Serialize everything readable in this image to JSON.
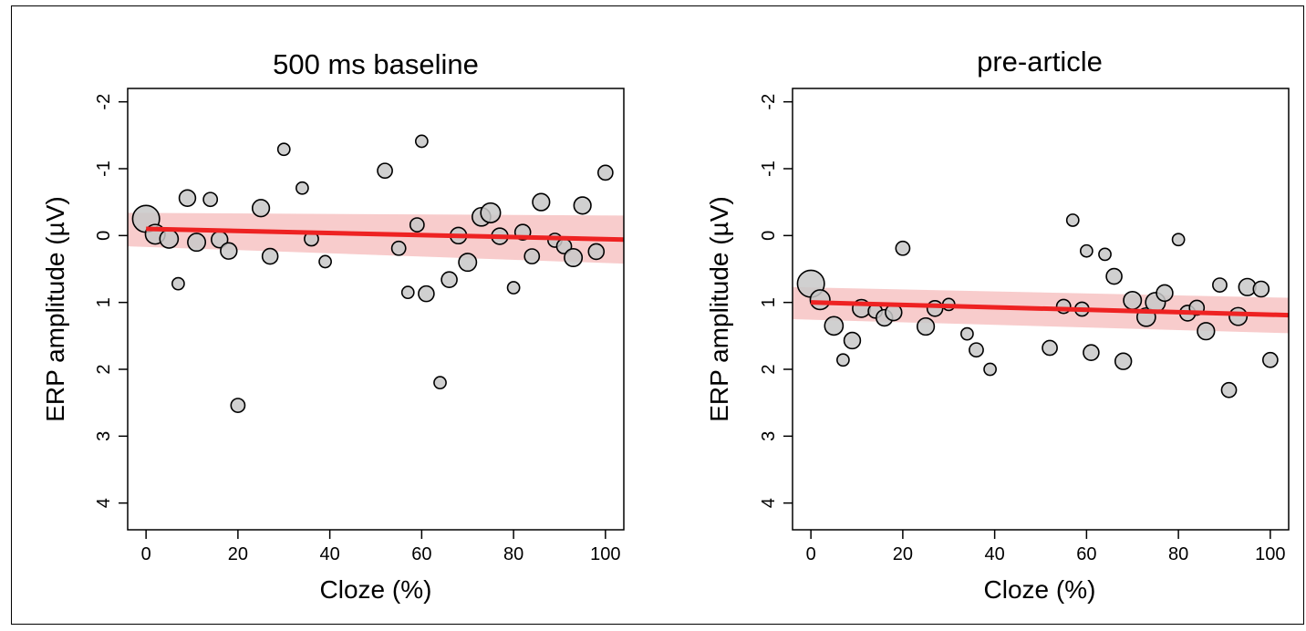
{
  "chart_data": [
    {
      "type": "scatter",
      "title": "500 ms baseline",
      "xlabel": "Cloze (%)",
      "ylabel": "ERP amplitude (µV)",
      "xlim": [
        -4,
        104
      ],
      "ylim": [
        4.4,
        -2.2
      ],
      "y_axis_reversed": true,
      "xticks": [
        0,
        20,
        40,
        60,
        80,
        100
      ],
      "yticks": [
        -2,
        -1,
        0,
        1,
        2,
        3,
        4
      ],
      "xtick_labels": [
        "0",
        "20",
        "40",
        "60",
        "80",
        "100"
      ],
      "ytick_labels": [
        "-2",
        "-1",
        "0",
        "1",
        "2",
        "3",
        "4"
      ],
      "grid": false,
      "point_color": "#c8c8c8",
      "points": [
        {
          "x": 0,
          "y": -0.25,
          "size": 3.0
        },
        {
          "x": 2,
          "y": -0.02,
          "size": 1.6
        },
        {
          "x": 5,
          "y": 0.05,
          "size": 1.4
        },
        {
          "x": 7,
          "y": 0.72,
          "size": 0.6
        },
        {
          "x": 9,
          "y": -0.56,
          "size": 1.1
        },
        {
          "x": 11,
          "y": 0.1,
          "size": 1.3
        },
        {
          "x": 14,
          "y": -0.54,
          "size": 0.8
        },
        {
          "x": 16,
          "y": 0.06,
          "size": 1.1
        },
        {
          "x": 18,
          "y": 0.23,
          "size": 1.1
        },
        {
          "x": 20,
          "y": 2.54,
          "size": 0.8
        },
        {
          "x": 25,
          "y": -0.41,
          "size": 1.2
        },
        {
          "x": 27,
          "y": 0.31,
          "size": 1.0
        },
        {
          "x": 30,
          "y": -1.29,
          "size": 0.6
        },
        {
          "x": 34,
          "y": -0.71,
          "size": 0.6
        },
        {
          "x": 36,
          "y": 0.05,
          "size": 0.8
        },
        {
          "x": 39,
          "y": 0.39,
          "size": 0.6
        },
        {
          "x": 52,
          "y": -0.97,
          "size": 0.9
        },
        {
          "x": 55,
          "y": 0.19,
          "size": 0.8
        },
        {
          "x": 57,
          "y": 0.85,
          "size": 0.6
        },
        {
          "x": 59,
          "y": -0.16,
          "size": 0.8
        },
        {
          "x": 60,
          "y": -1.41,
          "size": 0.6
        },
        {
          "x": 61,
          "y": 0.87,
          "size": 1.0
        },
        {
          "x": 64,
          "y": 2.2,
          "size": 0.6
        },
        {
          "x": 66,
          "y": 0.66,
          "size": 1.0
        },
        {
          "x": 68,
          "y": 0.0,
          "size": 1.1
        },
        {
          "x": 70,
          "y": 0.4,
          "size": 1.3
        },
        {
          "x": 73,
          "y": -0.28,
          "size": 1.4
        },
        {
          "x": 75,
          "y": -0.34,
          "size": 1.6
        },
        {
          "x": 77,
          "y": 0.01,
          "size": 1.1
        },
        {
          "x": 80,
          "y": 0.78,
          "size": 0.6
        },
        {
          "x": 82,
          "y": -0.05,
          "size": 1.0
        },
        {
          "x": 84,
          "y": 0.31,
          "size": 0.9
        },
        {
          "x": 86,
          "y": -0.5,
          "size": 1.2
        },
        {
          "x": 89,
          "y": 0.07,
          "size": 0.8
        },
        {
          "x": 91,
          "y": 0.16,
          "size": 0.9
        },
        {
          "x": 93,
          "y": 0.33,
          "size": 1.3
        },
        {
          "x": 95,
          "y": -0.45,
          "size": 1.2
        },
        {
          "x": 98,
          "y": 0.24,
          "size": 1.0
        },
        {
          "x": 100,
          "y": -0.94,
          "size": 0.9
        }
      ],
      "fit_line": {
        "x": [
          0,
          104
        ],
        "y": [
          -0.1,
          0.06
        ],
        "color": "#ee2222"
      },
      "confidence_band": {
        "x": [
          -4,
          104
        ],
        "y_upper": [
          -0.34,
          -0.3
        ],
        "y_lower": [
          0.16,
          0.42
        ],
        "color": "#f7c6c6"
      }
    },
    {
      "type": "scatter",
      "title": "pre-article",
      "xlabel": "Cloze (%)",
      "ylabel": "ERP amplitude (µV)",
      "xlim": [
        -4,
        104
      ],
      "ylim": [
        4.4,
        -2.2
      ],
      "y_axis_reversed": true,
      "xticks": [
        0,
        20,
        40,
        60,
        80,
        100
      ],
      "yticks": [
        -2,
        -1,
        0,
        1,
        2,
        3,
        4
      ],
      "xtick_labels": [
        "0",
        "20",
        "40",
        "60",
        "80",
        "100"
      ],
      "ytick_labels": [
        "-2",
        "-1",
        "0",
        "1",
        "2",
        "3",
        "4"
      ],
      "grid": false,
      "point_color": "#c8c8c8",
      "points": [
        {
          "x": 0,
          "y": 0.72,
          "size": 3.0
        },
        {
          "x": 2,
          "y": 0.96,
          "size": 1.6
        },
        {
          "x": 5,
          "y": 1.35,
          "size": 1.4
        },
        {
          "x": 7,
          "y": 1.86,
          "size": 0.6
        },
        {
          "x": 9,
          "y": 1.57,
          "size": 1.1
        },
        {
          "x": 11,
          "y": 1.09,
          "size": 1.3
        },
        {
          "x": 14,
          "y": 1.13,
          "size": 0.8
        },
        {
          "x": 16,
          "y": 1.23,
          "size": 1.1
        },
        {
          "x": 18,
          "y": 1.15,
          "size": 1.1
        },
        {
          "x": 20,
          "y": 0.19,
          "size": 0.8
        },
        {
          "x": 25,
          "y": 1.36,
          "size": 1.2
        },
        {
          "x": 27,
          "y": 1.09,
          "size": 1.0
        },
        {
          "x": 30,
          "y": 1.03,
          "size": 0.6
        },
        {
          "x": 34,
          "y": 1.47,
          "size": 0.6
        },
        {
          "x": 36,
          "y": 1.71,
          "size": 0.8
        },
        {
          "x": 39,
          "y": 2.0,
          "size": 0.6
        },
        {
          "x": 52,
          "y": 1.68,
          "size": 0.9
        },
        {
          "x": 55,
          "y": 1.06,
          "size": 0.8
        },
        {
          "x": 57,
          "y": -0.23,
          "size": 0.6
        },
        {
          "x": 59,
          "y": 1.1,
          "size": 0.8
        },
        {
          "x": 60,
          "y": 0.23,
          "size": 0.6
        },
        {
          "x": 61,
          "y": 1.75,
          "size": 1.0
        },
        {
          "x": 64,
          "y": 0.28,
          "size": 0.6
        },
        {
          "x": 66,
          "y": 0.61,
          "size": 1.0
        },
        {
          "x": 68,
          "y": 1.88,
          "size": 1.1
        },
        {
          "x": 70,
          "y": 0.97,
          "size": 1.3
        },
        {
          "x": 73,
          "y": 1.22,
          "size": 1.4
        },
        {
          "x": 75,
          "y": 1.0,
          "size": 1.6
        },
        {
          "x": 77,
          "y": 0.86,
          "size": 1.1
        },
        {
          "x": 80,
          "y": 0.06,
          "size": 0.6
        },
        {
          "x": 82,
          "y": 1.16,
          "size": 1.0
        },
        {
          "x": 84,
          "y": 1.08,
          "size": 0.9
        },
        {
          "x": 86,
          "y": 1.43,
          "size": 1.2
        },
        {
          "x": 89,
          "y": 0.74,
          "size": 0.8
        },
        {
          "x": 91,
          "y": 2.31,
          "size": 0.9
        },
        {
          "x": 93,
          "y": 1.21,
          "size": 1.3
        },
        {
          "x": 95,
          "y": 0.77,
          "size": 1.2
        },
        {
          "x": 98,
          "y": 0.8,
          "size": 1.0
        },
        {
          "x": 100,
          "y": 1.86,
          "size": 0.9
        }
      ],
      "fit_line": {
        "x": [
          0,
          104
        ],
        "y": [
          1.0,
          1.19
        ],
        "color": "#ee2222"
      },
      "confidence_band": {
        "x": [
          -4,
          104
        ],
        "y_upper": [
          0.77,
          0.93
        ],
        "y_lower": [
          1.25,
          1.46
        ],
        "color": "#f7c6c6"
      }
    }
  ]
}
